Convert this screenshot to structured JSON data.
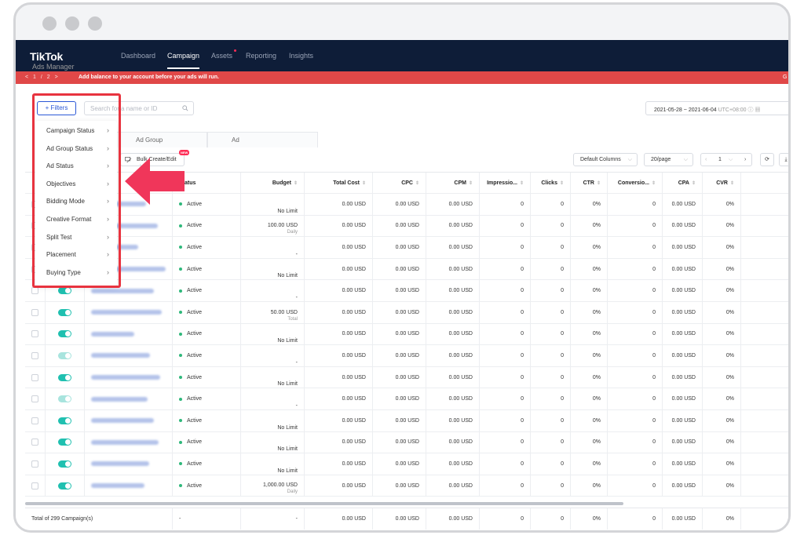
{
  "brand": {
    "name": "TikTok",
    "sub": "Ads Manager"
  },
  "nav": [
    "Dashboard",
    "Campaign",
    "Assets",
    "Reporting",
    "Insights"
  ],
  "alert": {
    "pager": "< 1 / 2 >",
    "message": "Add balance to your account before your ads will run.",
    "tail": "G"
  },
  "filters_label": "+ Filters",
  "search_placeholder": "Search for a name or ID",
  "date_range": {
    "start": "2021-05-28",
    "sep": "~",
    "end": "2021-06-04",
    "tz": "UTC+08:00"
  },
  "tabs": [
    "Ad Group",
    "Ad"
  ],
  "bulk_label": "Bulk Create/Edit",
  "new_badge": "NEW",
  "default_columns": "Default Columns",
  "page_size": "20/page",
  "page_num": "1",
  "filter_menu": [
    "Campaign Status",
    "Ad Group Status",
    "Ad Status",
    "Objectives",
    "Bidding Mode",
    "Creative Format",
    "Split Test",
    "Placement",
    "Buying Type"
  ],
  "columns": [
    "Status",
    "Budget",
    "Total Cost",
    "CPC",
    "CPM",
    "Impressio...",
    "Clicks",
    "CTR",
    "Conversio...",
    "CPA",
    "CVR"
  ],
  "rows": [
    {
      "status": "Active",
      "budget": "No Limit",
      "budget_sub": "",
      "cost": "0.00 USD",
      "cpc": "0.00 USD",
      "cpm": "0.00 USD",
      "imp": "0",
      "clicks": "0",
      "ctr": "0%",
      "conv": "0",
      "cpa": "0.00 USD",
      "cvr": "0%",
      "toggle": "on"
    },
    {
      "status": "Active",
      "budget": "100.00 USD",
      "budget_sub": "Daily",
      "cost": "0.00 USD",
      "cpc": "0.00 USD",
      "cpm": "0.00 USD",
      "imp": "0",
      "clicks": "0",
      "ctr": "0%",
      "conv": "0",
      "cpa": "0.00 USD",
      "cvr": "0%",
      "toggle": "on"
    },
    {
      "status": "Active",
      "budget": "-",
      "budget_sub": "",
      "cost": "0.00 USD",
      "cpc": "0.00 USD",
      "cpm": "0.00 USD",
      "imp": "0",
      "clicks": "0",
      "ctr": "0%",
      "conv": "0",
      "cpa": "0.00 USD",
      "cvr": "0%",
      "toggle": "on"
    },
    {
      "status": "Active",
      "budget": "No Limit",
      "budget_sub": "",
      "cost": "0.00 USD",
      "cpc": "0.00 USD",
      "cpm": "0.00 USD",
      "imp": "0",
      "clicks": "0",
      "ctr": "0%",
      "conv": "0",
      "cpa": "0.00 USD",
      "cvr": "0%",
      "toggle": "on"
    },
    {
      "status": "Active",
      "budget": "-",
      "budget_sub": "",
      "cost": "0.00 USD",
      "cpc": "0.00 USD",
      "cpm": "0.00 USD",
      "imp": "0",
      "clicks": "0",
      "ctr": "0%",
      "conv": "0",
      "cpa": "0.00 USD",
      "cvr": "0%",
      "toggle": "on"
    },
    {
      "status": "Active",
      "budget": "50.00 USD",
      "budget_sub": "Total",
      "cost": "0.00 USD",
      "cpc": "0.00 USD",
      "cpm": "0.00 USD",
      "imp": "0",
      "clicks": "0",
      "ctr": "0%",
      "conv": "0",
      "cpa": "0.00 USD",
      "cvr": "0%",
      "toggle": "on"
    },
    {
      "status": "Active",
      "budget": "No Limit",
      "budget_sub": "",
      "cost": "0.00 USD",
      "cpc": "0.00 USD",
      "cpm": "0.00 USD",
      "imp": "0",
      "clicks": "0",
      "ctr": "0%",
      "conv": "0",
      "cpa": "0.00 USD",
      "cvr": "0%",
      "toggle": "on"
    },
    {
      "status": "Active",
      "budget": "-",
      "budget_sub": "",
      "cost": "0.00 USD",
      "cpc": "0.00 USD",
      "cpm": "0.00 USD",
      "imp": "0",
      "clicks": "0",
      "ctr": "0%",
      "conv": "0",
      "cpa": "0.00 USD",
      "cvr": "0%",
      "toggle": "light"
    },
    {
      "status": "Active",
      "budget": "No Limit",
      "budget_sub": "",
      "cost": "0.00 USD",
      "cpc": "0.00 USD",
      "cpm": "0.00 USD",
      "imp": "0",
      "clicks": "0",
      "ctr": "0%",
      "conv": "0",
      "cpa": "0.00 USD",
      "cvr": "0%",
      "toggle": "on"
    },
    {
      "status": "Active",
      "budget": "-",
      "budget_sub": "",
      "cost": "0.00 USD",
      "cpc": "0.00 USD",
      "cpm": "0.00 USD",
      "imp": "0",
      "clicks": "0",
      "ctr": "0%",
      "conv": "0",
      "cpa": "0.00 USD",
      "cvr": "0%",
      "toggle": "light"
    },
    {
      "status": "Active",
      "budget": "No Limit",
      "budget_sub": "",
      "cost": "0.00 USD",
      "cpc": "0.00 USD",
      "cpm": "0.00 USD",
      "imp": "0",
      "clicks": "0",
      "ctr": "0%",
      "conv": "0",
      "cpa": "0.00 USD",
      "cvr": "0%",
      "toggle": "on"
    },
    {
      "status": "Active",
      "budget": "No Limit",
      "budget_sub": "",
      "cost": "0.00 USD",
      "cpc": "0.00 USD",
      "cpm": "0.00 USD",
      "imp": "0",
      "clicks": "0",
      "ctr": "0%",
      "conv": "0",
      "cpa": "0.00 USD",
      "cvr": "0%",
      "toggle": "on"
    },
    {
      "status": "Active",
      "budget": "No Limit",
      "budget_sub": "",
      "cost": "0.00 USD",
      "cpc": "0.00 USD",
      "cpm": "0.00 USD",
      "imp": "0",
      "clicks": "0",
      "ctr": "0%",
      "conv": "0",
      "cpa": "0.00 USD",
      "cvr": "0%",
      "toggle": "on"
    },
    {
      "status": "Active",
      "budget": "1,000.00 USD",
      "budget_sub": "Daily",
      "cost": "0.00 USD",
      "cpc": "0.00 USD",
      "cpm": "0.00 USD",
      "imp": "0",
      "clicks": "0",
      "ctr": "0%",
      "conv": "0",
      "cpa": "0.00 USD",
      "cvr": "0%",
      "toggle": "on"
    }
  ],
  "footer": {
    "label": "Total of 299 Campaign(s)",
    "status": "-",
    "budget": "-",
    "cost": "0.00 USD",
    "cpc": "0.00 USD",
    "cpm": "0.00 USD",
    "imp": "0",
    "clicks": "0",
    "ctr": "0%",
    "conv": "0",
    "cpa": "0.00 USD",
    "cvr": "0%"
  },
  "colors": {
    "nav_bg": "#0e1d38",
    "alert_bg": "#e04848",
    "accent_blue": "#2b58d6",
    "highlight_red": "#e8333f",
    "arrow_pink": "#f0365a",
    "toggle_teal": "#20c0b0"
  }
}
